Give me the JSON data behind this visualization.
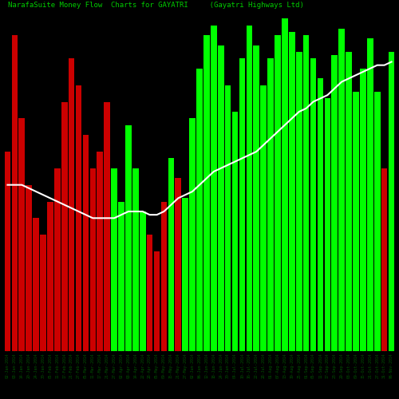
{
  "title": "NarafaSuite Money Flow  Charts for GAYATRI",
  "subtitle": "(Gayatri Highways Ltd)",
  "background_color": "#000000",
  "bar_values": [
    0.6,
    0.95,
    0.7,
    0.5,
    0.4,
    0.35,
    0.45,
    0.55,
    0.75,
    0.88,
    0.8,
    0.65,
    0.55,
    0.6,
    0.75,
    0.55,
    0.45,
    0.68,
    0.55,
    0.42,
    0.35,
    0.3,
    0.45,
    0.58,
    0.52,
    0.46,
    0.7,
    0.85,
    0.95,
    0.98,
    0.92,
    0.8,
    0.72,
    0.88,
    0.98,
    0.92,
    0.8,
    0.88,
    0.95,
    1.0,
    0.96,
    0.9,
    0.95,
    0.88,
    0.82,
    0.76,
    0.89,
    0.97,
    0.9,
    0.78,
    0.85,
    0.94,
    0.78,
    0.55,
    0.9
  ],
  "bar_colors": [
    "red",
    "red",
    "red",
    "red",
    "red",
    "red",
    "red",
    "red",
    "red",
    "red",
    "red",
    "red",
    "red",
    "red",
    "red",
    "green",
    "green",
    "green",
    "green",
    "green",
    "red",
    "red",
    "red",
    "green",
    "red",
    "green",
    "green",
    "green",
    "green",
    "green",
    "green",
    "green",
    "green",
    "green",
    "green",
    "green",
    "green",
    "green",
    "green",
    "green",
    "green",
    "green",
    "green",
    "green",
    "green",
    "green",
    "green",
    "green",
    "green",
    "green",
    "green",
    "green",
    "green",
    "red",
    "green"
  ],
  "line_values": [
    0.5,
    0.5,
    0.5,
    0.49,
    0.48,
    0.47,
    0.46,
    0.45,
    0.44,
    0.43,
    0.42,
    0.41,
    0.4,
    0.4,
    0.4,
    0.4,
    0.41,
    0.42,
    0.42,
    0.42,
    0.41,
    0.41,
    0.42,
    0.44,
    0.46,
    0.47,
    0.48,
    0.5,
    0.52,
    0.54,
    0.55,
    0.56,
    0.57,
    0.58,
    0.59,
    0.6,
    0.62,
    0.64,
    0.66,
    0.68,
    0.7,
    0.72,
    0.73,
    0.75,
    0.76,
    0.77,
    0.79,
    0.81,
    0.82,
    0.83,
    0.84,
    0.85,
    0.86,
    0.86,
    0.87
  ],
  "line_color": "#ffffff",
  "line_width": 1.5,
  "title_color": "#00cc00",
  "title_fontsize": 6.5,
  "tick_fontsize": 3.5,
  "tick_color": "#005500",
  "dates": [
    "02-Jan-2014",
    "08-Jan-2014",
    "14-Jan-2014",
    "20-Jan-2014",
    "24-Jan-2014",
    "30-Jan-2014",
    "05-Feb-2014",
    "11-Feb-2014",
    "17-Feb-2014",
    "21-Feb-2014",
    "27-Feb-2014",
    "05-Mar-2014",
    "11-Mar-2014",
    "17-Mar-2014",
    "21-Mar-2014",
    "27-Mar-2014",
    "02-Apr-2014",
    "08-Apr-2014",
    "14-Apr-2014",
    "22-Apr-2014",
    "28-Apr-2014",
    "05-May-2014",
    "09-May-2014",
    "15-May-2014",
    "21-May-2014",
    "27-May-2014",
    "02-Jun-2014",
    "06-Jun-2014",
    "12-Jun-2014",
    "18-Jun-2014",
    "24-Jun-2014",
    "30-Jun-2014",
    "04-Jul-2014",
    "10-Jul-2014",
    "16-Jul-2014",
    "22-Jul-2014",
    "28-Jul-2014",
    "01-Aug-2014",
    "07-Aug-2014",
    "13-Aug-2014",
    "19-Aug-2014",
    "25-Aug-2014",
    "01-Sep-2014",
    "05-Sep-2014",
    "11-Sep-2014",
    "17-Sep-2014",
    "23-Sep-2014",
    "29-Sep-2014",
    "03-Oct-2014",
    "09-Oct-2014",
    "15-Oct-2014",
    "21-Oct-2014",
    "27-Oct-2014",
    "31-Oct-2014",
    "06-Nov-2014"
  ],
  "ylim": [
    0,
    1.02
  ],
  "green_color": "#00ff00",
  "red_color": "#cc0000"
}
